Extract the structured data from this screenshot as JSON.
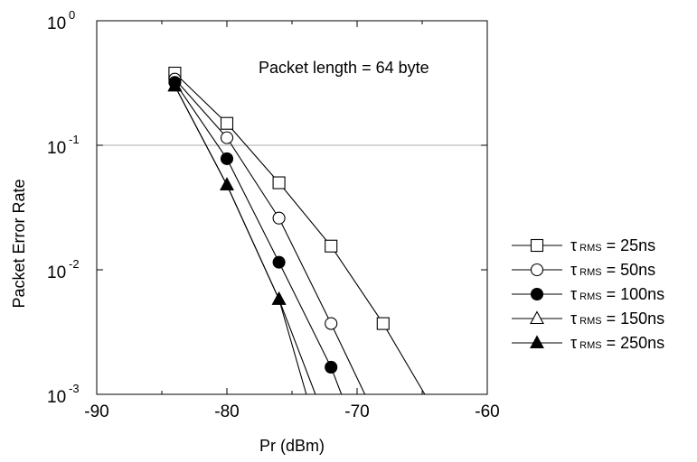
{
  "chart_data": {
    "type": "line",
    "title": "",
    "xlabel": "Pr (dBm)",
    "ylabel": "Packet Error Rate",
    "xlim": [
      -90,
      -60
    ],
    "ylim": [
      0.001,
      1
    ],
    "yscale": "log",
    "x_ticks": [
      {
        "value": -90,
        "label": "-90"
      },
      {
        "value": -80,
        "label": "-80"
      },
      {
        "value": -70,
        "label": "-70"
      },
      {
        "value": -60,
        "label": "-60"
      }
    ],
    "y_ticks": [
      {
        "value": 1,
        "base": "10",
        "exp": "0"
      },
      {
        "value": 0.1,
        "base": "10",
        "exp": "-1"
      },
      {
        "value": 0.01,
        "base": "10",
        "exp": "-2"
      },
      {
        "value": 0.001,
        "base": "10",
        "exp": "-3"
      }
    ],
    "reference_line": {
      "y": 0.1,
      "color": "#aaaaaa"
    },
    "annotation": "Packet length = 64 byte",
    "legend_position": "right",
    "series": [
      {
        "tau": "τ",
        "sub": "RMS",
        "label_rest": " = 25ns",
        "marker": "square",
        "filled": false,
        "points": [
          [
            -84,
            0.38
          ],
          [
            -80,
            0.15
          ],
          [
            -76,
            0.05
          ],
          [
            -72,
            0.0155
          ],
          [
            -68,
            0.0037
          ]
        ],
        "extend_to": [
          -64.8,
          0.001
        ]
      },
      {
        "tau": "τ",
        "sub": "RMS",
        "label_rest": " = 50ns",
        "marker": "circle",
        "filled": false,
        "points": [
          [
            -84,
            0.34
          ],
          [
            -80,
            0.115
          ],
          [
            -76,
            0.026
          ],
          [
            -72,
            0.0037
          ]
        ],
        "extend_to": [
          -69.4,
          0.001
        ]
      },
      {
        "tau": "τ",
        "sub": "RMS",
        "label_rest": " = 100ns",
        "marker": "circle",
        "filled": true,
        "points": [
          [
            -84,
            0.32
          ],
          [
            -80,
            0.078
          ],
          [
            -76,
            0.0115
          ],
          [
            -72,
            0.00165
          ]
        ],
        "extend_to": [
          -71.2,
          0.001
        ]
      },
      {
        "tau": "τ",
        "sub": "RMS",
        "label_rest": " = 150ns",
        "marker": "triangle",
        "filled": false,
        "points": [
          [
            -84,
            0.3
          ],
          [
            -80,
            0.048
          ],
          [
            -76,
            0.0058
          ]
        ],
        "extend_to": [
          -73.2,
          0.001
        ]
      },
      {
        "tau": "τ",
        "sub": "RMS",
        "label_rest": " = 250ns",
        "marker": "triangle",
        "filled": true,
        "points": [
          [
            -84,
            0.3
          ],
          [
            -80,
            0.048
          ],
          [
            -76,
            0.0058
          ]
        ],
        "extend_to": [
          -73.9,
          0.001
        ]
      }
    ]
  }
}
